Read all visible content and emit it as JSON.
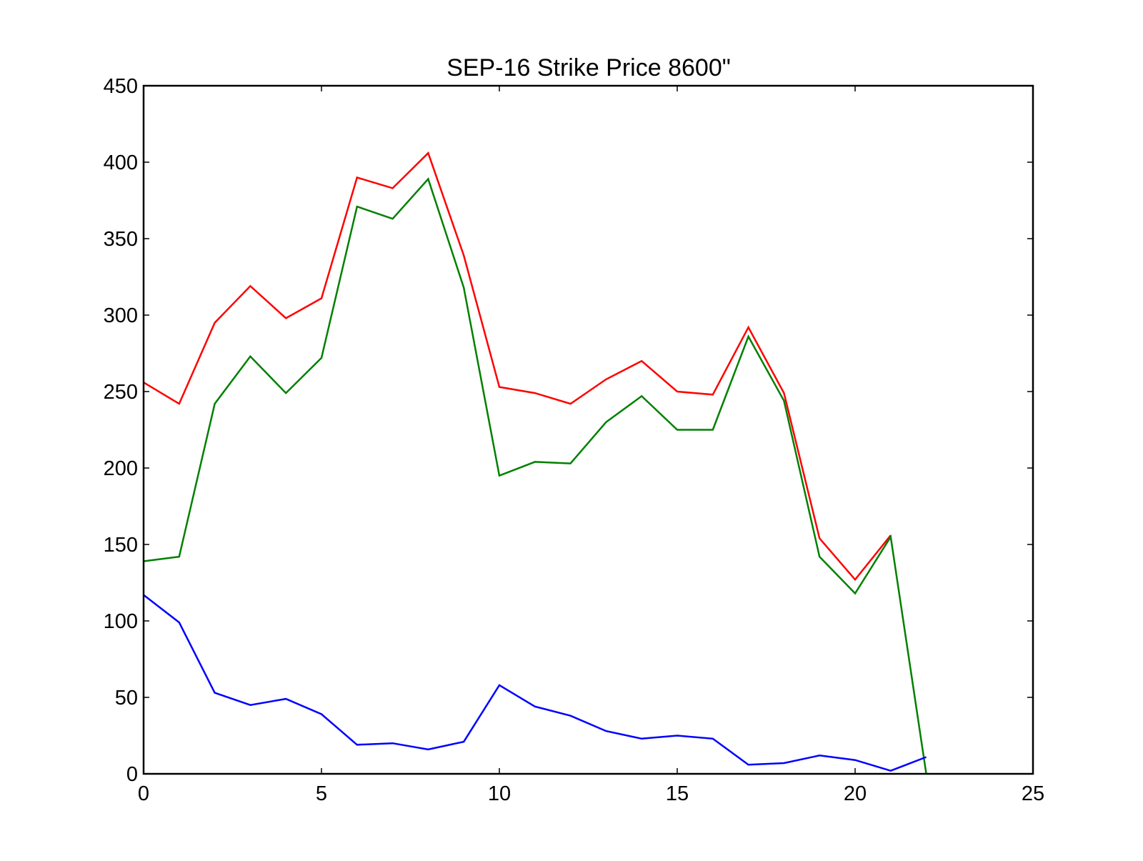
{
  "chart_data": {
    "type": "line",
    "title": "SEP-16 Strike Price 8600\"",
    "xlabel": "",
    "ylabel": "",
    "xlim": [
      0,
      25
    ],
    "ylim": [
      0,
      450
    ],
    "xticks": [
      0,
      5,
      10,
      15,
      20,
      25
    ],
    "yticks": [
      0,
      50,
      100,
      150,
      200,
      250,
      300,
      350,
      400,
      450
    ],
    "grid": false,
    "legend": "none",
    "series": [
      {
        "color": "#ff0000",
        "x": [
          0,
          1,
          2,
          3,
          4,
          5,
          6,
          7,
          8,
          9,
          10,
          11,
          12,
          13,
          14,
          15,
          16,
          17,
          18,
          19,
          20,
          21
        ],
        "values": [
          256,
          242,
          295,
          319,
          298,
          311,
          390,
          383,
          406,
          339,
          253,
          249,
          242,
          258,
          270,
          250,
          248,
          292,
          249,
          154,
          127,
          156
        ]
      },
      {
        "color": "#008000",
        "x": [
          0,
          1,
          2,
          3,
          4,
          5,
          6,
          7,
          8,
          9,
          10,
          11,
          12,
          13,
          14,
          15,
          16,
          17,
          18,
          19,
          20,
          21,
          22
        ],
        "values": [
          139,
          142,
          242,
          273,
          249,
          272,
          371,
          363,
          389,
          318,
          195,
          204,
          203,
          230,
          247,
          225,
          225,
          286,
          244,
          142,
          118,
          155,
          0
        ]
      },
      {
        "color": "#0000ff",
        "x": [
          0,
          1,
          2,
          3,
          4,
          5,
          6,
          7,
          8,
          9,
          10,
          11,
          12,
          13,
          14,
          15,
          16,
          17,
          18,
          19,
          20,
          21,
          22
        ],
        "values": [
          117,
          99,
          53,
          45,
          49,
          39,
          19,
          20,
          16,
          21,
          58,
          44,
          38,
          28,
          23,
          25,
          23,
          6,
          7,
          12,
          9,
          2,
          11
        ]
      }
    ]
  }
}
